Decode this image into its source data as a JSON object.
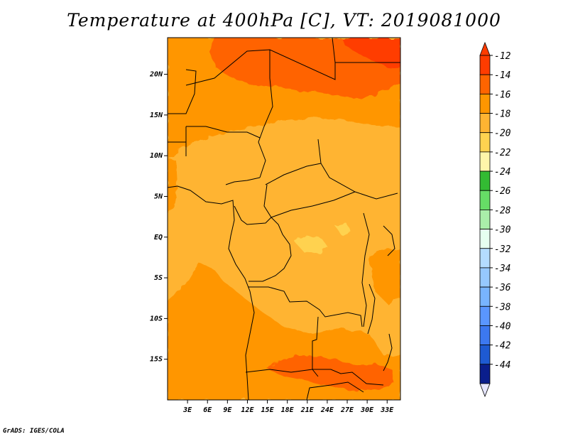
{
  "title": "Temperature at 400hPa [C], VT: 2019081000",
  "credit": "GrADS: IGES/COLA",
  "map": {
    "variable": "Temperature",
    "level": "400hPa",
    "units": "C",
    "valid_time": "2019081000",
    "lon_range": [
      0,
      35
    ],
    "lat_range": [
      -20,
      24.5
    ],
    "lon_labels": [
      {
        "lon": 3,
        "text": "3E"
      },
      {
        "lon": 6,
        "text": "6E"
      },
      {
        "lon": 9,
        "text": "9E"
      },
      {
        "lon": 12,
        "text": "12E"
      },
      {
        "lon": 15,
        "text": "15E"
      },
      {
        "lon": 18,
        "text": "18E"
      },
      {
        "lon": 21,
        "text": "21E"
      },
      {
        "lon": 24,
        "text": "24E"
      },
      {
        "lon": 27,
        "text": "27E"
      },
      {
        "lon": 30,
        "text": "30E"
      },
      {
        "lon": 33,
        "text": "33E"
      }
    ],
    "lat_labels": [
      {
        "lat": 20,
        "text": "20N"
      },
      {
        "lat": 15,
        "text": "15N"
      },
      {
        "lat": 10,
        "text": "10N"
      },
      {
        "lat": 5,
        "text": "5N"
      },
      {
        "lat": 0,
        "text": "EQ"
      },
      {
        "lat": -5,
        "text": "5S"
      },
      {
        "lat": -10,
        "text": "10S"
      },
      {
        "lat": -15,
        "text": "15S"
      }
    ]
  },
  "colorbar": {
    "labels": [
      "-12",
      "-14",
      "-16",
      "-18",
      "-20",
      "-22",
      "-24",
      "-26",
      "-28",
      "-30",
      "-32",
      "-34",
      "-36",
      "-38",
      "-40",
      "-42",
      "-44"
    ],
    "colors": [
      "#ff3c00",
      "#ff6400",
      "#ff9600",
      "#ffb432",
      "#ffd250",
      "#fff5aa",
      "#33bb33",
      "#66dd66",
      "#aaeeaa",
      "#e6fff0",
      "#b4dcff",
      "#96c8ff",
      "#78b4ff",
      "#5a96ff",
      "#3c78f0",
      "#1e5ad2",
      "#0a1e8c"
    ],
    "top_color": "#ff3c00",
    "bottom_color": "#e6e6ff"
  }
}
